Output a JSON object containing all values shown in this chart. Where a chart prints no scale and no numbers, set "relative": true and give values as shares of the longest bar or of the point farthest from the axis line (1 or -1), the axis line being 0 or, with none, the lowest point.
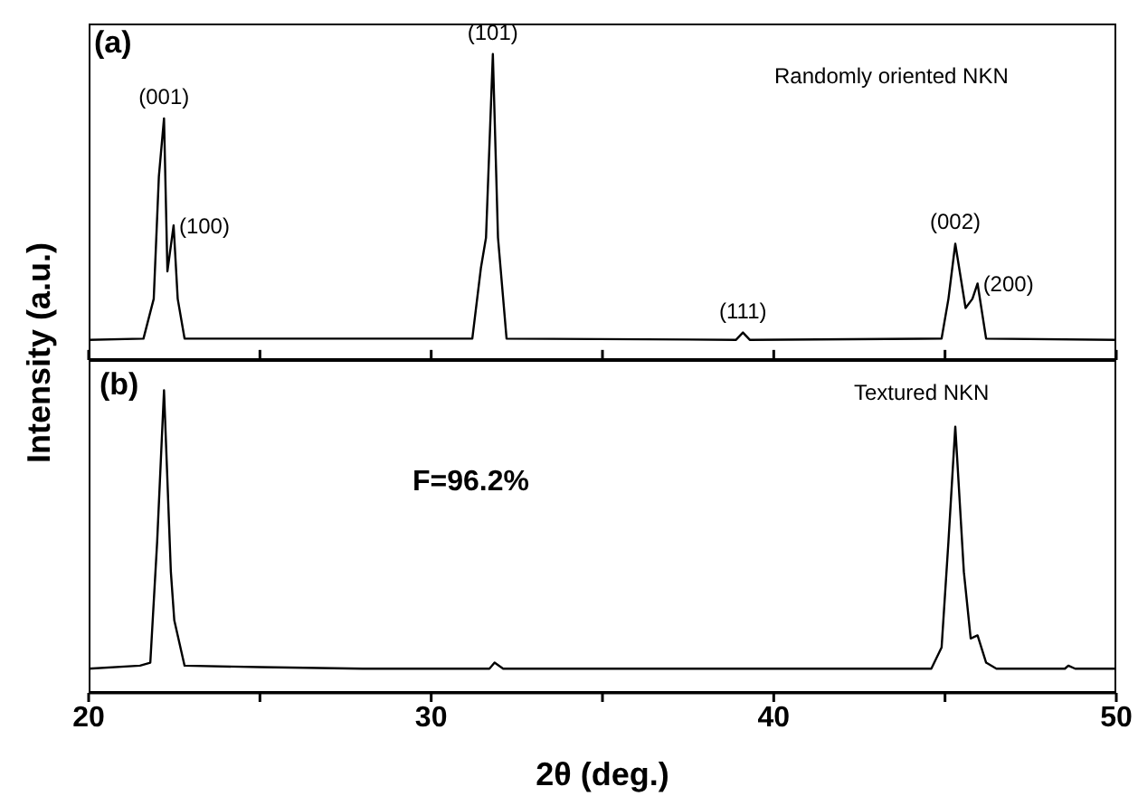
{
  "chart_data": [
    {
      "type": "line",
      "relative": true,
      "xlim": [
        20,
        50
      ],
      "xticks": [
        20,
        {
          "value": 25,
          "label": null
        },
        30,
        {
          "value": 35,
          "label": null
        },
        40,
        {
          "value": 45,
          "label": null
        },
        50
      ],
      "tick_labels": false,
      "marker": "none",
      "line_style": "solid",
      "annotations": [
        "(a)",
        "Randomly oriented NKN",
        {
          "text": "(001)",
          "x": 22.2,
          "y": 0.79
        },
        {
          "text": "(100)",
          "x": 22.48,
          "y": 0.44
        },
        {
          "text": "(101)",
          "x": 31.8,
          "y": 1
        },
        {
          "text": "(111)",
          "x": 39.1,
          "y": 0.09
        },
        {
          "text": "(002)",
          "x": 45.3,
          "y": 0.38
        },
        {
          "text": "(200)",
          "x": 45.95,
          "y": 0.25
        }
      ],
      "series": [
        {
          "color": "#000000",
          "x": [
            20,
            21.6,
            21.9,
            22.05,
            22.2,
            22.3,
            22.48,
            22.6,
            22.8,
            31.2,
            31.45,
            31.6,
            31.8,
            31.95,
            32.2,
            38.9,
            39.1,
            39.3,
            44.9,
            45.1,
            45.3,
            45.6,
            45.8,
            45.95,
            46.2,
            50
          ],
          "values": [
            0.066,
            0.07,
            0.2,
            0.6,
            0.79,
            0.29,
            0.44,
            0.2,
            0.07,
            0.07,
            0.3,
            0.4,
            1,
            0.4,
            0.07,
            0.066,
            0.09,
            0.066,
            0.07,
            0.2,
            0.38,
            0.17,
            0.2,
            0.25,
            0.07,
            0.066
          ]
        }
      ]
    },
    {
      "type": "line",
      "relative": true,
      "xlim": [
        20,
        50
      ],
      "xticks": [
        20,
        {
          "value": 25,
          "label": null
        },
        30,
        {
          "value": 35,
          "label": null
        },
        40,
        {
          "value": 45,
          "label": null
        },
        50
      ],
      "tick_labels": "x",
      "marker": "none",
      "line_style": "solid",
      "xlabel": "2θ (deg.)",
      "ylabel": "Intensity (a.u.)",
      "annotations": [
        "(b)",
        "F=96.2%",
        "Textured NKN"
      ],
      "series": [
        {
          "color": "#000000",
          "x": [
            20,
            21.5,
            21.8,
            22,
            22.2,
            22.4,
            22.5,
            22.8,
            25,
            28,
            31.7,
            31.85,
            32.1,
            44.6,
            44.9,
            45.1,
            45.3,
            45.55,
            45.75,
            45.95,
            46.2,
            46.5,
            48.5,
            48.6,
            48.8,
            50
          ],
          "values": [
            0.08,
            0.09,
            0.1,
            0.5,
            1,
            0.4,
            0.24,
            0.09,
            0.085,
            0.08,
            0.08,
            0.1,
            0.08,
            0.08,
            0.15,
            0.5,
            0.88,
            0.4,
            0.18,
            0.19,
            0.1,
            0.08,
            0.08,
            0.09,
            0.08,
            0.08
          ]
        }
      ]
    }
  ]
}
